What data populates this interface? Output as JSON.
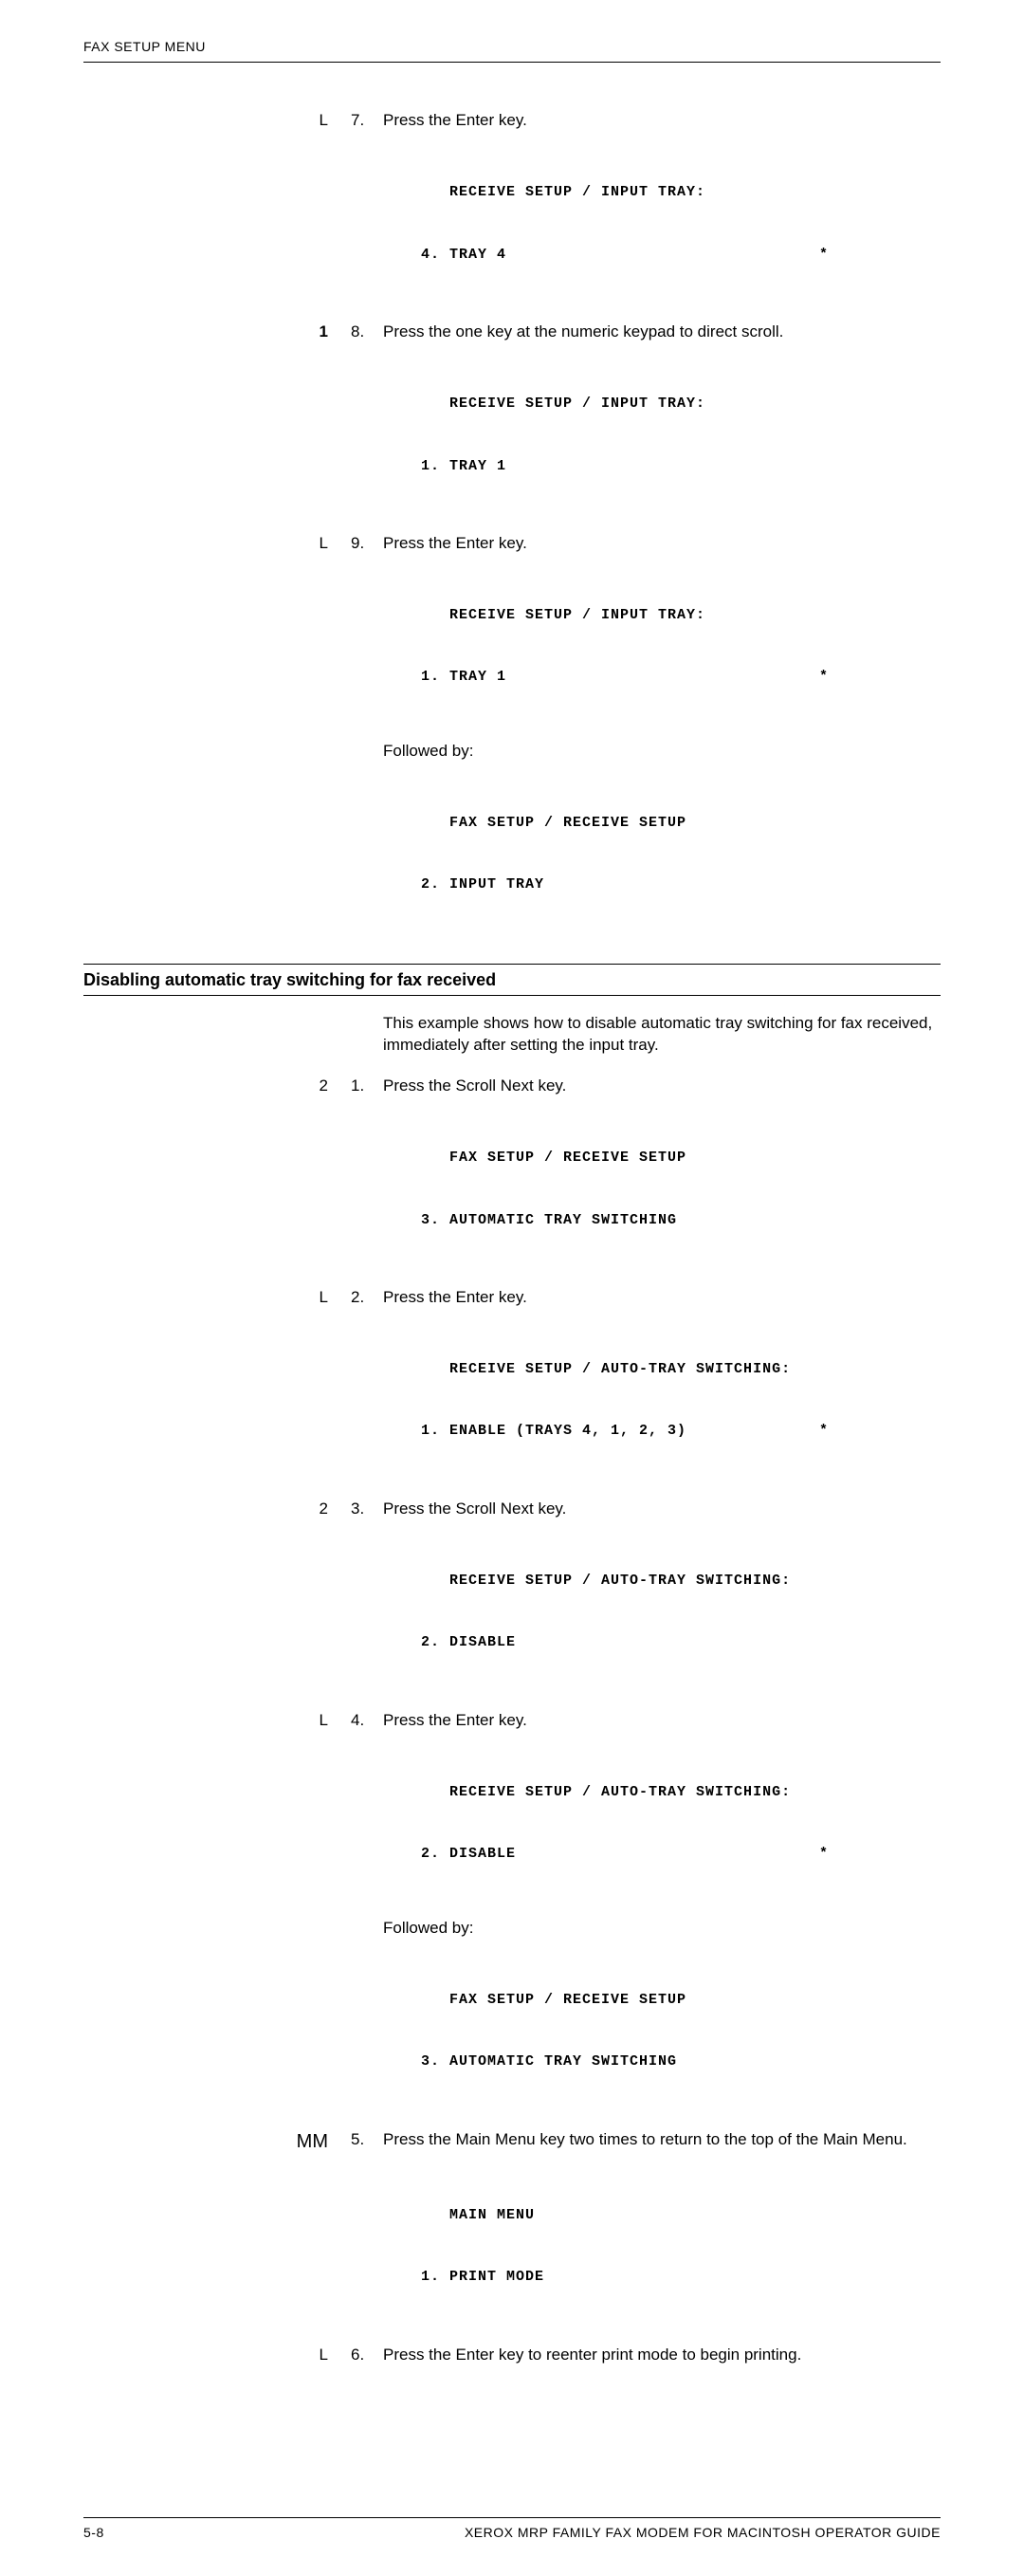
{
  "header": {
    "title": "FAX SETUP MENU"
  },
  "section1": {
    "steps": [
      {
        "key": "L",
        "num": "7.",
        "text": "Press the Enter key.",
        "display": [
          {
            "indent": "   ",
            "text": "RECEIVE SETUP / INPUT TRAY:",
            "star": ""
          },
          {
            "indent": "",
            "text": "4. TRAY 4",
            "star": "*"
          }
        ]
      },
      {
        "key": "1",
        "key_bold": true,
        "num": "8.",
        "text": "Press the one key at the numeric keypad to direct scroll.",
        "display": [
          {
            "indent": "   ",
            "text": "RECEIVE SETUP / INPUT TRAY:",
            "star": ""
          },
          {
            "indent": "",
            "text": "1. TRAY 1",
            "star": ""
          }
        ]
      },
      {
        "key": "L",
        "num": "9.",
        "text": "Press the Enter key.",
        "display": [
          {
            "indent": "   ",
            "text": "RECEIVE SETUP / INPUT TRAY:",
            "star": ""
          },
          {
            "indent": "",
            "text": "1. TRAY 1",
            "star": "*"
          }
        ],
        "followed_label": "Followed by:",
        "display2": [
          {
            "indent": "   ",
            "text": "FAX SETUP / RECEIVE SETUP",
            "star": ""
          },
          {
            "indent": "",
            "text": "2. INPUT TRAY",
            "star": ""
          }
        ]
      }
    ]
  },
  "section2": {
    "heading": "Disabling automatic tray switching for fax received",
    "intro": "This example shows how to disable automatic tray switching for fax received, immediately after setting the input tray.",
    "steps": [
      {
        "key": "2",
        "num": "1.",
        "text": "Press the Scroll Next key.",
        "display": [
          {
            "indent": "   ",
            "text": "FAX SETUP / RECEIVE SETUP",
            "star": ""
          },
          {
            "indent": "",
            "text": "3. AUTOMATIC TRAY SWITCHING",
            "star": ""
          }
        ]
      },
      {
        "key": "L",
        "num": "2.",
        "text": "Press the Enter key.",
        "display": [
          {
            "indent": "   ",
            "text": "RECEIVE SETUP / AUTO-TRAY SWITCHING:",
            "star": ""
          },
          {
            "indent": "",
            "text": "1. ENABLE (TRAYS 4, 1, 2, 3)",
            "star": "*"
          }
        ]
      },
      {
        "key": "2",
        "num": "3.",
        "text": "Press the Scroll Next key.",
        "display": [
          {
            "indent": "   ",
            "text": "RECEIVE SETUP / AUTO-TRAY SWITCHING:",
            "star": ""
          },
          {
            "indent": "",
            "text": "2. DISABLE",
            "star": ""
          }
        ]
      },
      {
        "key": "L",
        "num": "4.",
        "text": "Press the Enter key.",
        "display": [
          {
            "indent": "   ",
            "text": "RECEIVE SETUP / AUTO-TRAY SWITCHING:",
            "star": ""
          },
          {
            "indent": "",
            "text": "2. DISABLE",
            "star": "*"
          }
        ],
        "followed_label": "Followed by:",
        "display2": [
          {
            "indent": "   ",
            "text": "FAX SETUP / RECEIVE SETUP",
            "star": ""
          },
          {
            "indent": "",
            "text": "3. AUTOMATIC TRAY SWITCHING",
            "star": ""
          }
        ]
      },
      {
        "key": "MM",
        "key_large": true,
        "num": "5.",
        "text": "Press the Main Menu key two times to return to the top of the Main Menu.",
        "display": [
          {
            "indent": "   ",
            "text": "MAIN MENU",
            "star": ""
          },
          {
            "indent": "",
            "text": "1. PRINT MODE",
            "star": ""
          }
        ]
      },
      {
        "key": "L",
        "num": "6.",
        "text": "Press the Enter key to reenter print mode to begin printing."
      }
    ]
  },
  "footer": {
    "page": "5-8",
    "title": "XEROX MRP FAMILY FAX MODEM FOR MACINTOSH OPERATOR GUIDE"
  }
}
